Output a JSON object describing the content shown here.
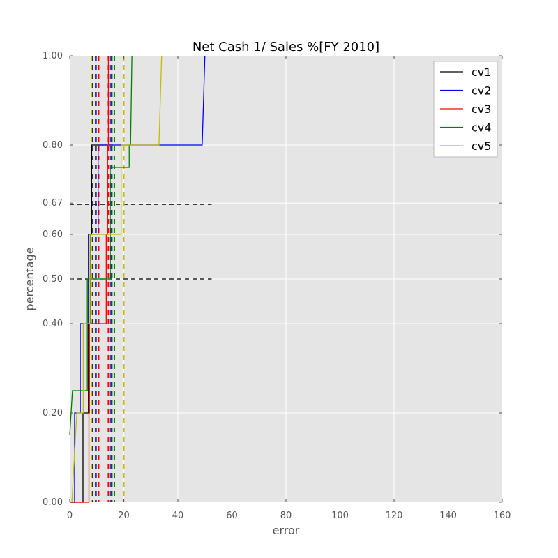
{
  "chart_data": {
    "type": "line",
    "title": "Net Cash 1/ Sales %[FY 2010]",
    "xlabel": "error",
    "ylabel": "percentage",
    "xlim": [
      0,
      160
    ],
    "ylim": [
      0,
      1
    ],
    "x_ticks": [
      0,
      20,
      40,
      60,
      80,
      100,
      120,
      140,
      160
    ],
    "x_tick_labels": [
      "0",
      "20",
      "40",
      "60",
      "80",
      "100",
      "120",
      "140",
      "160"
    ],
    "y_ticks": [
      0.0,
      0.2,
      0.4,
      0.5,
      0.6,
      0.67,
      0.8,
      1.0
    ],
    "y_tick_labels": [
      "0.00",
      "0.20",
      "0.40",
      "0.50",
      "0.60",
      "0.67",
      "0.80",
      "1.00"
    ],
    "grid": true,
    "legend_position": "top-right",
    "reference_lines": [
      {
        "y": 0.5,
        "x_range": [
          0,
          52.5
        ],
        "style": "dashed",
        "color": "#000000"
      },
      {
        "y": 0.667,
        "x_range": [
          0,
          52.5
        ],
        "style": "dashed",
        "color": "#000000"
      }
    ],
    "series": [
      {
        "name": "cv1",
        "color": "#000000",
        "points": [
          [
            0,
            0
          ],
          [
            4.9,
            0
          ],
          [
            4.9,
            0.2
          ],
          [
            6.9,
            0.2
          ],
          [
            6.9,
            0.4
          ],
          [
            7.8,
            0.4
          ],
          [
            7.8,
            0.6
          ],
          [
            8.1,
            0.6
          ],
          [
            8.1,
            0.8
          ],
          [
            16,
            0.8
          ],
          [
            16,
            0.8
          ]
        ],
        "vlines": [
          8.2,
          9.7
        ]
      },
      {
        "name": "cv2",
        "color": "#0000ff",
        "points": [
          [
            0,
            0
          ],
          [
            1.8,
            0
          ],
          [
            1.8,
            0.2
          ],
          [
            3.9,
            0.2
          ],
          [
            3.9,
            0.4
          ],
          [
            6.9,
            0.4
          ],
          [
            6.9,
            0.6
          ],
          [
            10.5,
            0.6
          ],
          [
            10.5,
            0.8
          ],
          [
            49,
            0.8
          ],
          [
            50,
            1.0
          ]
        ],
        "vlines": [
          9.6,
          15.3
        ]
      },
      {
        "name": "cv3",
        "color": "#ff0000",
        "points": [
          [
            0,
            0
          ],
          [
            7.1,
            0
          ],
          [
            7.1,
            0.2
          ],
          [
            7.3,
            0.2
          ],
          [
            7.3,
            0.4
          ],
          [
            13.5,
            0.4
          ],
          [
            13.5,
            0.6
          ],
          [
            14,
            0.6
          ],
          [
            14,
            0.8
          ],
          [
            14.3,
            0.8
          ],
          [
            14.3,
            1.0
          ]
        ],
        "vlines": [
          10.7,
          14.3
        ]
      },
      {
        "name": "cv4",
        "color": "#008000",
        "points": [
          [
            0,
            0.15
          ],
          [
            1,
            0.25
          ],
          [
            6.5,
            0.25
          ],
          [
            6.5,
            0.5
          ],
          [
            15,
            0.5
          ],
          [
            15,
            0.75
          ],
          [
            22,
            0.75
          ],
          [
            22,
            0.8
          ],
          [
            22.5,
            0.8
          ],
          [
            23,
            1.0
          ]
        ],
        "vlines": [
          15.6,
          16.5
        ]
      },
      {
        "name": "cv5",
        "color": "#bfbf00",
        "points": [
          [
            0.8,
            0
          ],
          [
            2.6,
            0.2
          ],
          [
            5,
            0.2
          ],
          [
            5,
            0.4
          ],
          [
            7.5,
            0.4
          ],
          [
            7.5,
            0.6
          ],
          [
            19,
            0.6
          ],
          [
            19,
            0.8
          ],
          [
            33,
            0.8
          ],
          [
            34,
            1.0
          ]
        ],
        "vlines": [
          8.0,
          20.0
        ]
      }
    ]
  }
}
